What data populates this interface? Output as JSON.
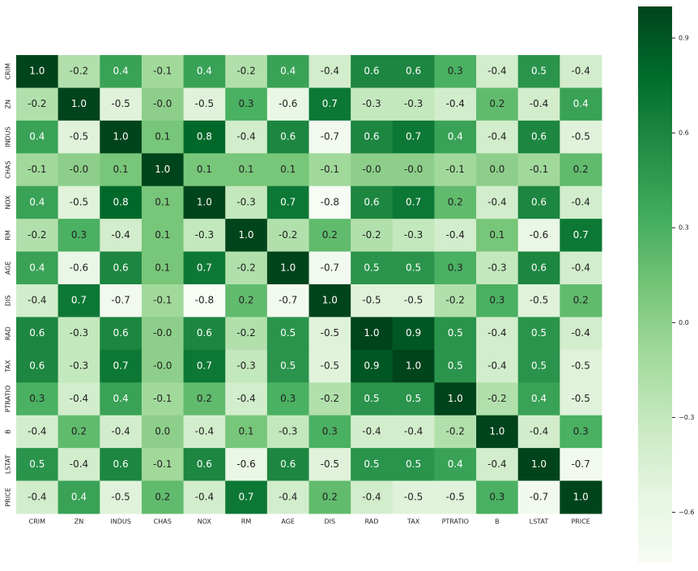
{
  "chart_data": {
    "type": "heatmap",
    "colormap": "Greens",
    "x_labels": [
      "CRIM",
      "ZN",
      "INDUS",
      "CHAS",
      "NOX",
      "RM",
      "AGE",
      "DIS",
      "RAD",
      "TAX",
      "PTRATIO",
      "B",
      "LSTAT",
      "PRICE"
    ],
    "y_labels": [
      "CRIM",
      "ZN",
      "INDUS",
      "CHAS",
      "NOX",
      "RM",
      "AGE",
      "DIS",
      "RAD",
      "TAX",
      "PTRATIO",
      "B",
      "LSTAT",
      "PRICE"
    ],
    "values": [
      [
        1.0,
        -0.2,
        0.4,
        -0.1,
        0.4,
        -0.2,
        0.4,
        -0.4,
        0.6,
        0.6,
        0.3,
        -0.4,
        0.5,
        -0.4
      ],
      [
        -0.2,
        1.0,
        -0.5,
        0,
        -0.5,
        0.3,
        -0.6,
        0.7,
        -0.3,
        -0.3,
        -0.4,
        0.2,
        -0.4,
        0.4
      ],
      [
        0.4,
        -0.5,
        1.0,
        0.1,
        0.8,
        -0.4,
        0.6,
        -0.7,
        0.6,
        0.7,
        0.4,
        -0.4,
        0.6,
        -0.5
      ],
      [
        -0.1,
        0,
        0.1,
        1.0,
        0.1,
        0.1,
        0.1,
        -0.1,
        0,
        0,
        -0.1,
        0,
        -0.1,
        0.2
      ],
      [
        0.4,
        -0.5,
        0.8,
        0.1,
        1.0,
        -0.3,
        0.7,
        -0.8,
        0.6,
        0.7,
        0.2,
        -0.4,
        0.6,
        -0.4
      ],
      [
        -0.2,
        0.3,
        -0.4,
        0.1,
        -0.3,
        1.0,
        -0.2,
        0.2,
        -0.2,
        -0.3,
        -0.4,
        0.1,
        -0.6,
        0.7
      ],
      [
        0.4,
        -0.6,
        0.6,
        0.1,
        0.7,
        -0.2,
        1.0,
        -0.7,
        0.5,
        0.5,
        0.3,
        -0.3,
        0.6,
        -0.4
      ],
      [
        -0.4,
        0.7,
        -0.7,
        -0.1,
        -0.8,
        0.2,
        -0.7,
        1.0,
        -0.5,
        -0.5,
        -0.2,
        0.3,
        -0.5,
        0.2
      ],
      [
        0.6,
        -0.3,
        0.6,
        0,
        0.6,
        -0.2,
        0.5,
        -0.5,
        1.0,
        0.9,
        0.5,
        -0.4,
        0.5,
        -0.4
      ],
      [
        0.6,
        -0.3,
        0.7,
        0,
        0.7,
        -0.3,
        0.5,
        -0.5,
        0.9,
        1.0,
        0.5,
        -0.4,
        0.5,
        -0.5
      ],
      [
        0.3,
        -0.4,
        0.4,
        -0.1,
        0.2,
        -0.4,
        0.3,
        -0.2,
        0.5,
        0.5,
        1.0,
        -0.2,
        0.4,
        -0.5
      ],
      [
        -0.4,
        0.2,
        -0.4,
        0,
        -0.4,
        0.1,
        -0.3,
        0.3,
        -0.4,
        -0.4,
        -0.2,
        1.0,
        -0.4,
        0.3
      ],
      [
        0.5,
        -0.4,
        0.6,
        -0.1,
        0.6,
        -0.6,
        0.6,
        -0.5,
        0.5,
        0.5,
        0.4,
        -0.4,
        1.0,
        -0.7
      ],
      [
        -0.4,
        0.4,
        -0.5,
        0.2,
        -0.4,
        0.7,
        -0.4,
        0.2,
        -0.4,
        -0.5,
        -0.5,
        0.3,
        -0.7,
        1.0
      ]
    ],
    "value_labels": [
      [
        "1.0",
        "-0.2",
        "0.4",
        "-0.1",
        "0.4",
        "-0.2",
        "0.4",
        "-0.4",
        "0.6",
        "0.6",
        "0.3",
        "-0.4",
        "0.5",
        "-0.4"
      ],
      [
        "-0.2",
        "1.0",
        "-0.5",
        "-0.0",
        "-0.5",
        "0.3",
        "-0.6",
        "0.7",
        "-0.3",
        "-0.3",
        "-0.4",
        "0.2",
        "-0.4",
        "0.4"
      ],
      [
        "0.4",
        "-0.5",
        "1.0",
        "0.1",
        "0.8",
        "-0.4",
        "0.6",
        "-0.7",
        "0.6",
        "0.7",
        "0.4",
        "-0.4",
        "0.6",
        "-0.5"
      ],
      [
        "-0.1",
        "-0.0",
        "0.1",
        "1.0",
        "0.1",
        "0.1",
        "0.1",
        "-0.1",
        "-0.0",
        "-0.0",
        "-0.1",
        "0.0",
        "-0.1",
        "0.2"
      ],
      [
        "0.4",
        "-0.5",
        "0.8",
        "0.1",
        "1.0",
        "-0.3",
        "0.7",
        "-0.8",
        "0.6",
        "0.7",
        "0.2",
        "-0.4",
        "0.6",
        "-0.4"
      ],
      [
        "-0.2",
        "0.3",
        "-0.4",
        "0.1",
        "-0.3",
        "1.0",
        "-0.2",
        "0.2",
        "-0.2",
        "-0.3",
        "-0.4",
        "0.1",
        "-0.6",
        "0.7"
      ],
      [
        "0.4",
        "-0.6",
        "0.6",
        "0.1",
        "0.7",
        "-0.2",
        "1.0",
        "-0.7",
        "0.5",
        "0.5",
        "0.3",
        "-0.3",
        "0.6",
        "-0.4"
      ],
      [
        "-0.4",
        "0.7",
        "-0.7",
        "-0.1",
        "-0.8",
        "0.2",
        "-0.7",
        "1.0",
        "-0.5",
        "-0.5",
        "-0.2",
        "0.3",
        "-0.5",
        "0.2"
      ],
      [
        "0.6",
        "-0.3",
        "0.6",
        "-0.0",
        "0.6",
        "-0.2",
        "0.5",
        "-0.5",
        "1.0",
        "0.9",
        "0.5",
        "-0.4",
        "0.5",
        "-0.4"
      ],
      [
        "0.6",
        "-0.3",
        "0.7",
        "-0.0",
        "0.7",
        "-0.3",
        "0.5",
        "-0.5",
        "0.9",
        "1.0",
        "0.5",
        "-0.4",
        "0.5",
        "-0.5"
      ],
      [
        "0.3",
        "-0.4",
        "0.4",
        "-0.1",
        "0.2",
        "-0.4",
        "0.3",
        "-0.2",
        "0.5",
        "0.5",
        "1.0",
        "-0.2",
        "0.4",
        "-0.5"
      ],
      [
        "-0.4",
        "0.2",
        "-0.4",
        "0.0",
        "-0.4",
        "0.1",
        "-0.3",
        "0.3",
        "-0.4",
        "-0.4",
        "-0.2",
        "1.0",
        "-0.4",
        "0.3"
      ],
      [
        "0.5",
        "-0.4",
        "0.6",
        "-0.1",
        "0.6",
        "-0.6",
        "0.6",
        "-0.5",
        "0.5",
        "0.5",
        "0.4",
        "-0.4",
        "1.0",
        "-0.7"
      ],
      [
        "-0.4",
        "0.4",
        "-0.5",
        "0.2",
        "-0.4",
        "0.7",
        "-0.4",
        "0.2",
        "-0.4",
        "-0.5",
        "-0.5",
        "0.3",
        "-0.7",
        "1.0"
      ]
    ],
    "clim": [
      -0.76,
      1.0
    ],
    "cticks": [
      0.9,
      0.6,
      0.3,
      {
        "value": 0,
        "label": "0.0"
      },
      {
        "value": -0.3,
        "label": "−0.3"
      },
      {
        "value": -0.6,
        "label": "−0.6"
      }
    ]
  }
}
